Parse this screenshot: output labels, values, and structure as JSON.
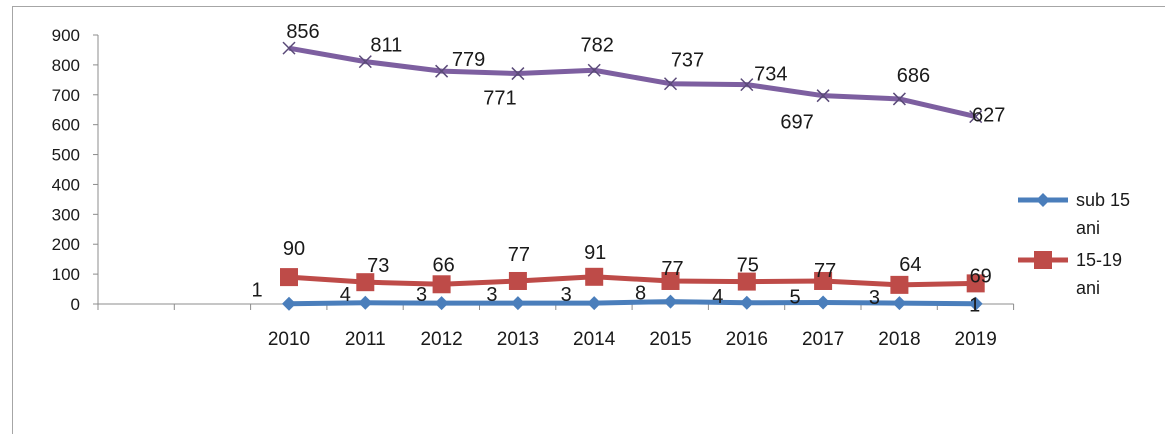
{
  "chart_data": {
    "type": "line",
    "categories": [
      "2010",
      "2011",
      "2012",
      "2013",
      "2014",
      "2015",
      "2016",
      "2017",
      "2018",
      "2019"
    ],
    "ylim": [
      0,
      900
    ],
    "yticks": [
      0,
      100,
      200,
      300,
      400,
      500,
      600,
      700,
      800,
      900
    ],
    "grid": false,
    "legend_position": "right",
    "series": [
      {
        "name": "sub 15 ani",
        "legend_lines": [
          "sub 15",
          "ani"
        ],
        "color": "#4a7ebb",
        "marker": "diamond",
        "values": [
          1,
          4,
          3,
          3,
          3,
          8,
          4,
          5,
          3,
          1
        ]
      },
      {
        "name": "15-19 ani",
        "legend_lines": [
          "15-19",
          "ani"
        ],
        "color": "#be4b48",
        "marker": "square",
        "values": [
          90,
          73,
          66,
          77,
          91,
          77,
          75,
          77,
          64,
          69
        ]
      },
      {
        "name": "",
        "color": "#7d5fa0",
        "marker": "x",
        "values": [
          856,
          811,
          779,
          771,
          782,
          737,
          734,
          697,
          686,
          627
        ]
      }
    ]
  }
}
